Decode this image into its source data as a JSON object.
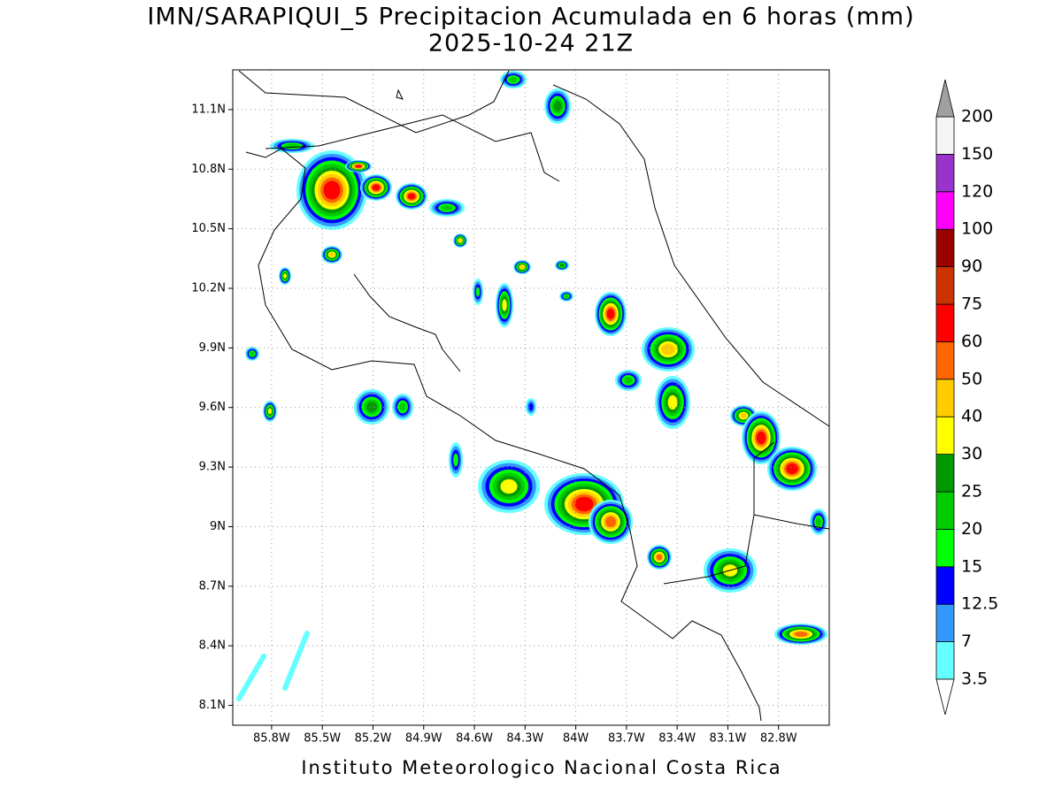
{
  "title": "IMN/SARAPIQUI_5 Precipitacion Acumulada en 6 horas (mm)",
  "subtitle": "2025-10-24 21Z",
  "footer": "Instituto Meteorologico Nacional Costa Rica",
  "map": {
    "xlim": [
      -86.03,
      -82.5
    ],
    "ylim": [
      8.0,
      11.3
    ],
    "xticks": [
      {
        "value": -85.8,
        "label": "85.8W"
      },
      {
        "value": -85.5,
        "label": "85.5W"
      },
      {
        "value": -85.2,
        "label": "85.2W"
      },
      {
        "value": -84.9,
        "label": "84.9W"
      },
      {
        "value": -84.6,
        "label": "84.6W"
      },
      {
        "value": -84.3,
        "label": "84.3W"
      },
      {
        "value": -84.0,
        "label": "84W"
      },
      {
        "value": -83.7,
        "label": "83.7W"
      },
      {
        "value": -83.4,
        "label": "83.4W"
      },
      {
        "value": -83.1,
        "label": "83.1W"
      },
      {
        "value": -82.8,
        "label": "82.8W"
      }
    ],
    "yticks": [
      {
        "value": 11.1,
        "label": "11.1N"
      },
      {
        "value": 10.8,
        "label": "10.8N"
      },
      {
        "value": 10.5,
        "label": "10.5N"
      },
      {
        "value": 10.2,
        "label": "10.2N"
      },
      {
        "value": 9.9,
        "label": "9.9N"
      },
      {
        "value": 9.6,
        "label": "9.6N"
      },
      {
        "value": 9.3,
        "label": "9.3N"
      },
      {
        "value": 9.0,
        "label": "9N"
      },
      {
        "value": 8.7,
        "label": "8.7N"
      },
      {
        "value": 8.4,
        "label": "8.4N"
      },
      {
        "value": 8.1,
        "label": "8.1N"
      }
    ],
    "grid": true
  },
  "colorbar": {
    "levels": [
      3.5,
      7,
      12.5,
      15,
      20,
      25,
      30,
      40,
      50,
      60,
      75,
      90,
      100,
      120,
      150,
      200
    ],
    "colors": [
      "#66ffff",
      "#3399ff",
      "#0000ff",
      "#00ff00",
      "#00cc00",
      "#009900",
      "#ffff00",
      "#ffcc00",
      "#ff6600",
      "#ff0000",
      "#cc3300",
      "#990000",
      "#ff00ff",
      "#9933cc",
      "#f5f5f5"
    ],
    "under_color": "#ffffff",
    "over_color": "#a0a0a0"
  }
}
